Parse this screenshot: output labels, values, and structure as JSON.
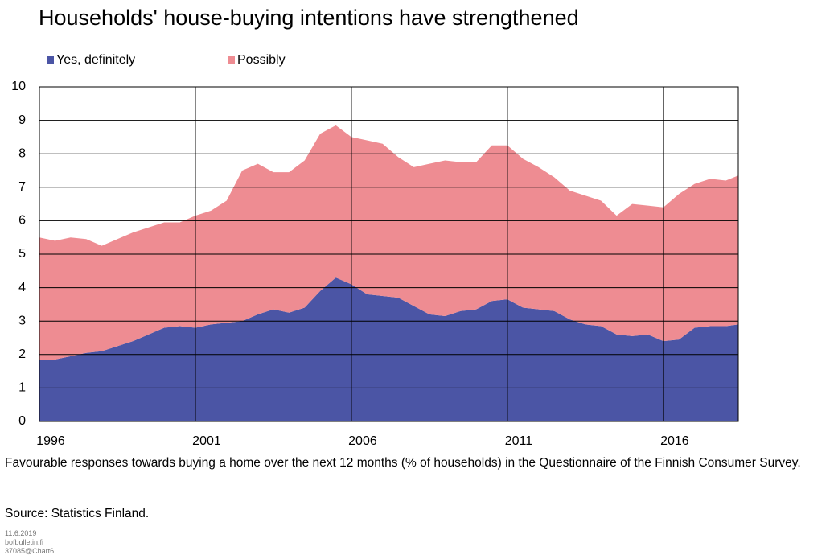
{
  "chart_data": {
    "type": "stacked_area",
    "title": "Households' house-buying intentions have strengthened",
    "subtitle": "Favourable responses towards buying a home over the next 12 months (% of households) in the Questionnaire of the Finnish Consumer Survey.",
    "source": "Source: Statistics Finland.",
    "footer": [
      "11.6.2019",
      "bofbulletin.fi",
      "37085@Chart6"
    ],
    "x": [
      1996,
      1996.5,
      1997,
      1997.5,
      1998,
      1998.5,
      1999,
      1999.5,
      2000,
      2000.5,
      2001,
      2001.5,
      2002,
      2002.5,
      2003,
      2003.5,
      2004,
      2004.5,
      2005,
      2005.5,
      2006,
      2006.5,
      2007,
      2007.5,
      2008,
      2008.5,
      2009,
      2009.5,
      2010,
      2010.5,
      2011,
      2011.5,
      2012,
      2012.5,
      2013,
      2013.5,
      2014,
      2014.5,
      2015,
      2015.5,
      2016,
      2016.5,
      2017,
      2017.5,
      2018,
      2018.4
    ],
    "series": [
      {
        "name": "Yes, definitely",
        "color": "#4b55a5",
        "values": [
          1.85,
          1.85,
          1.95,
          2.05,
          2.1,
          2.25,
          2.4,
          2.6,
          2.8,
          2.85,
          2.8,
          2.9,
          2.95,
          3.0,
          3.2,
          3.35,
          3.25,
          3.4,
          3.9,
          4.3,
          4.1,
          3.8,
          3.75,
          3.7,
          3.45,
          3.2,
          3.15,
          3.3,
          3.35,
          3.6,
          3.65,
          3.4,
          3.35,
          3.3,
          3.05,
          2.9,
          2.85,
          2.6,
          2.55,
          2.6,
          2.4,
          2.45,
          2.8,
          2.85,
          2.85,
          2.9
        ]
      },
      {
        "name": "Possibly",
        "color": "#ee8c92",
        "values": [
          3.65,
          3.55,
          3.55,
          3.4,
          3.15,
          3.2,
          3.25,
          3.2,
          3.15,
          3.1,
          3.35,
          3.4,
          3.65,
          4.5,
          4.5,
          4.1,
          4.2,
          4.4,
          4.7,
          4.55,
          4.4,
          4.6,
          4.55,
          4.2,
          4.15,
          4.5,
          4.65,
          4.45,
          4.4,
          4.65,
          4.6,
          4.45,
          4.25,
          4.0,
          3.85,
          3.85,
          3.75,
          3.55,
          3.95,
          3.85,
          4.0,
          4.35,
          4.3,
          4.4,
          4.35,
          4.45
        ]
      }
    ],
    "xlim": [
      1996,
      2018.4
    ],
    "xticks": [
      1996,
      2001,
      2006,
      2011,
      2016
    ],
    "ylim": [
      0,
      10
    ],
    "yticks": [
      0,
      1,
      2,
      3,
      4,
      5,
      6,
      7,
      8,
      9,
      10
    ],
    "grid": true
  }
}
